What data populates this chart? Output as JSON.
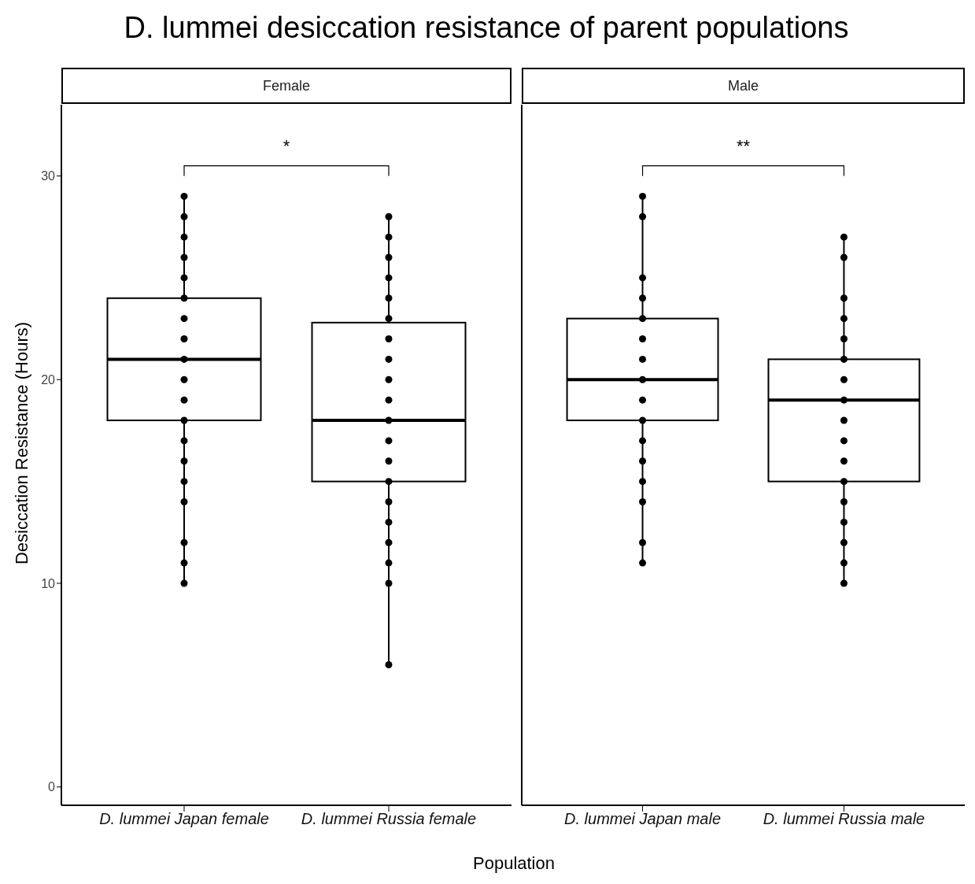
{
  "chart_data": [
    {
      "type": "box",
      "title": "D. lummei desiccation resistance of parent populations",
      "subtitle": "Female",
      "xlabel": "Population",
      "ylabel": "Desiccation Resistance (Hours)",
      "categories": [
        "D. lummei Japan female",
        "D. lummei Russia female"
      ],
      "boxes": [
        {
          "low": 10,
          "q1": 18,
          "median": 21,
          "q3": 24,
          "high": 29
        },
        {
          "low": 6,
          "q1": 15,
          "median": 18,
          "q3": 22.8,
          "high": 28
        }
      ],
      "series": [
        {
          "type": "scatter",
          "color": "#000000",
          "x": [
            "D. lummei Japan female",
            "D. lummei Japan female",
            "D. lummei Japan female",
            "D. lummei Japan female",
            "D. lummei Japan female",
            "D. lummei Japan female",
            "D. lummei Japan female",
            "D. lummei Japan female",
            "D. lummei Japan female",
            "D. lummei Japan female",
            "D. lummei Japan female",
            "D. lummei Japan female",
            "D. lummei Japan female",
            "D. lummei Japan female",
            "D. lummei Japan female",
            "D. lummei Japan female",
            "D. lummei Japan female",
            "D. lummei Japan female",
            "D. lummei Japan female",
            "D. lummei Russia female",
            "D. lummei Russia female",
            "D. lummei Russia female",
            "D. lummei Russia female",
            "D. lummei Russia female",
            "D. lummei Russia female",
            "D. lummei Russia female",
            "D. lummei Russia female",
            "D. lummei Russia female",
            "D. lummei Russia female",
            "D. lummei Russia female",
            "D. lummei Russia female",
            "D. lummei Russia female",
            "D. lummei Russia female",
            "D. lummei Russia female",
            "D. lummei Russia female",
            "D. lummei Russia female",
            "D. lummei Russia female",
            "D. lummei Russia female",
            "D. lummei Russia female"
          ],
          "values": [
            10,
            11,
            12,
            14,
            15,
            16,
            17,
            18,
            19,
            20,
            21,
            22,
            23,
            24,
            25,
            26,
            27,
            28,
            29,
            6,
            10,
            11,
            12,
            13,
            14,
            15,
            16,
            17,
            18,
            19,
            20,
            21,
            22,
            23,
            24,
            25,
            26,
            27,
            28
          ]
        }
      ],
      "ylim": [
        -0.9,
        33.5
      ],
      "yticks": [
        0,
        10,
        20,
        30
      ],
      "annotations": [
        "*"
      ]
    },
    {
      "type": "box",
      "subtitle": "Male",
      "categories": [
        "D. lummei Japan male",
        "D. lummei Russia male"
      ],
      "boxes": [
        {
          "low": 11,
          "q1": 18,
          "median": 20,
          "q3": 23,
          "high": 29
        },
        {
          "low": 10,
          "q1": 15,
          "median": 19,
          "q3": 21,
          "high": 27
        }
      ],
      "series": [
        {
          "type": "scatter",
          "color": "#000000",
          "x": [
            "D. lummei Japan male",
            "D. lummei Japan male",
            "D. lummei Japan male",
            "D. lummei Japan male",
            "D. lummei Japan male",
            "D. lummei Japan male",
            "D. lummei Japan male",
            "D. lummei Japan male",
            "D. lummei Japan male",
            "D. lummei Japan male",
            "D. lummei Japan male",
            "D. lummei Japan male",
            "D. lummei Japan male",
            "D. lummei Japan male",
            "D. lummei Japan male",
            "D. lummei Japan male",
            "D. lummei Russia male",
            "D. lummei Russia male",
            "D. lummei Russia male",
            "D. lummei Russia male",
            "D. lummei Russia male",
            "D. lummei Russia male",
            "D. lummei Russia male",
            "D. lummei Russia male",
            "D. lummei Russia male",
            "D. lummei Russia male",
            "D. lummei Russia male",
            "D. lummei Russia male",
            "D. lummei Russia male",
            "D. lummei Russia male",
            "D. lummei Russia male",
            "D. lummei Russia male",
            "D. lummei Russia male"
          ],
          "values": [
            11,
            12,
            14,
            15,
            16,
            17,
            18,
            19,
            20,
            21,
            22,
            23,
            24,
            25,
            28,
            29,
            10,
            11,
            12,
            13,
            14,
            15,
            16,
            17,
            18,
            19,
            20,
            21,
            22,
            23,
            24,
            26,
            27
          ]
        }
      ],
      "ylim": [
        -0.9,
        33.5
      ],
      "yticks": [
        0,
        10,
        20,
        30
      ],
      "tick_labels": "x",
      "annotations": [
        "**"
      ]
    }
  ]
}
